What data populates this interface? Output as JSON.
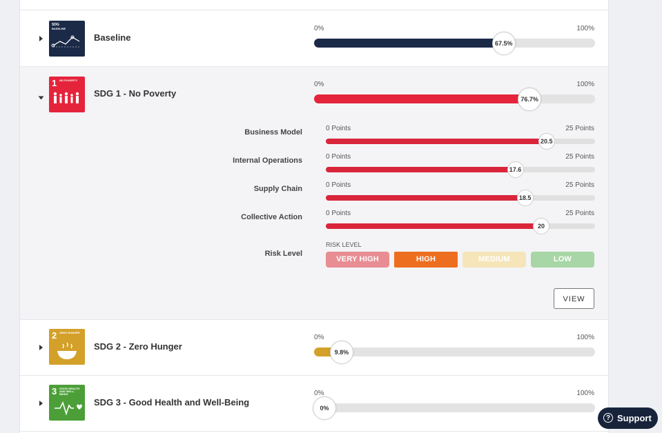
{
  "goals": {
    "baseline": {
      "badge_top": "SDG",
      "badge_sub": "BASELINE",
      "title": "Baseline",
      "scale_min": "0%",
      "scale_max": "100%",
      "value_label": "67.5%",
      "fraction": 0.675,
      "color": "#1b2a47"
    },
    "sdg1": {
      "badge_num": "1",
      "badge_sub": "NO POVERTY",
      "title": "SDG 1 - No Poverty",
      "scale_min": "0%",
      "scale_max": "100%",
      "value_label": "76.7%",
      "fraction": 0.767,
      "color": "#e5243b",
      "subs": [
        {
          "label": "Business Model",
          "min": "0 Points",
          "max": "25 Points",
          "value": "20.5",
          "fraction": 0.82
        },
        {
          "label": "Internal Operations",
          "min": "0 Points",
          "max": "25 Points",
          "value": "17.6",
          "fraction": 0.704
        },
        {
          "label": "Supply Chain",
          "min": "0 Points",
          "max": "25 Points",
          "value": "18.5",
          "fraction": 0.74
        },
        {
          "label": "Collective Action",
          "min": "0 Points",
          "max": "25 Points",
          "value": "20",
          "fraction": 0.8
        }
      ],
      "risk": {
        "label": "Risk Level",
        "caption": "RISK LEVEL",
        "buttons": [
          {
            "label": "VERY HIGH",
            "color": "#e88d93"
          },
          {
            "label": "HIGH",
            "color": "#ee6e1f"
          },
          {
            "label": "MEDIUM",
            "color": "#f6e5b9"
          },
          {
            "label": "LOW",
            "color": "#a8d6a6"
          }
        ],
        "selected": "HIGH"
      },
      "view_label": "VIEW"
    },
    "sdg2": {
      "badge_num": "2",
      "badge_sub": "ZERO HUNGER",
      "title": "SDG 2 - Zero Hunger",
      "scale_min": "0%",
      "scale_max": "100%",
      "value_label": "9.8%",
      "fraction": 0.098,
      "color": "#d3a029"
    },
    "sdg3": {
      "badge_num": "3",
      "badge_sub": "GOOD HEALTH AND WELL-BEING",
      "title": "SDG 3 - Good Health and Well-Being",
      "scale_min": "0%",
      "scale_max": "100%",
      "value_label": "0%",
      "fraction": 0.0,
      "color": "#4c9f38"
    }
  },
  "support": {
    "icon": "question-circle-icon",
    "label": "Support"
  }
}
